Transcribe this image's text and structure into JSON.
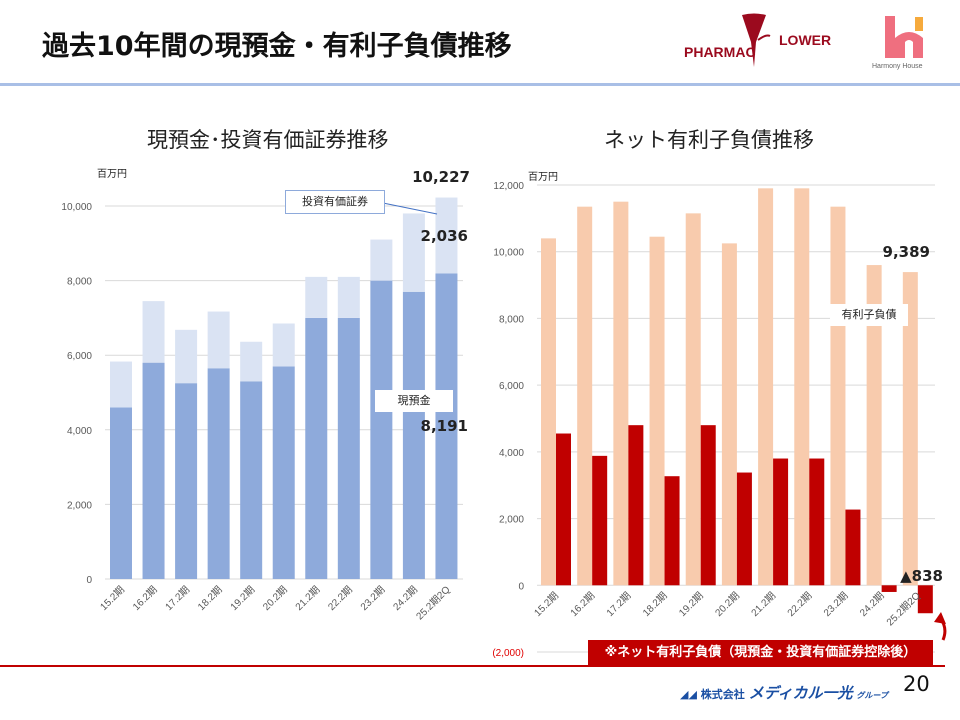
{
  "header": {
    "title": "過去10年間の現預金・有利子負債推移",
    "logo_pharmacy": {
      "left": "PHARMAC",
      "right": "LOWER"
    },
    "logo_harmony": "Harmony House"
  },
  "colors": {
    "cash": "#8eaadb",
    "securities": "#dae3f3",
    "debt": "#f8cbad",
    "net_debt": "#c00000",
    "header_rule": "#a9bfe6"
  },
  "chart_data": [
    {
      "type": "bar",
      "stacked": true,
      "title": "現預金･投資有価証券推移",
      "unit": "百万円",
      "categories": [
        "15.2期",
        "16.2期",
        "17.2期",
        "18.2期",
        "19.2期",
        "20.2期",
        "21.2期",
        "22.2期",
        "23.2期",
        "24.2期",
        "25.2期2Q"
      ],
      "series": [
        {
          "name": "現預金",
          "values": [
            4600,
            5800,
            5250,
            5650,
            5300,
            5700,
            7000,
            7000,
            8000,
            7700,
            8191
          ]
        },
        {
          "name": "投資有価証券",
          "values": [
            1230,
            1650,
            1430,
            1520,
            1060,
            1150,
            1100,
            1100,
            1100,
            2100,
            2036
          ]
        }
      ],
      "ylim": [
        0,
        10000
      ],
      "yticks": [
        "0",
        "2,000",
        "4,000",
        "6,000",
        "8,000",
        "10,000"
      ],
      "grid": true,
      "data_labels": {
        "total": "10,227",
        "securities": "2,036",
        "cash": "8,191"
      }
    },
    {
      "type": "bar",
      "title": "ネット有利子負債推移",
      "unit": "百万円",
      "categories": [
        "15.2期",
        "16.2期",
        "17.2期",
        "18.2期",
        "19.2期",
        "20.2期",
        "21.2期",
        "22.2期",
        "23.2期",
        "24.2期",
        "25.2期2Q"
      ],
      "series": [
        {
          "name": "有利子負債",
          "values": [
            10400,
            11350,
            11500,
            10450,
            11150,
            10250,
            11900,
            11900,
            11350,
            9600,
            9389
          ]
        },
        {
          "values": [
            4550,
            3880,
            4800,
            3270,
            4800,
            3380,
            3800,
            3800,
            2270,
            -200,
            -838
          ]
        }
      ],
      "ylim": [
        -2000,
        12000
      ],
      "yticks": [
        "(2,000)",
        "0",
        "2,000",
        "4,000",
        "6,000",
        "8,000",
        "10,000",
        "12,000"
      ],
      "grid": true,
      "data_labels": {
        "debt": "9,389",
        "net_debt": "▲838"
      },
      "note": "※ネット有利子負債（現預金・投資有価証券控除後）"
    }
  ],
  "footer": {
    "company_prefix": "株式会社",
    "company_name": "メディカル一光",
    "company_suffix": "グループ",
    "page_number": "20"
  }
}
